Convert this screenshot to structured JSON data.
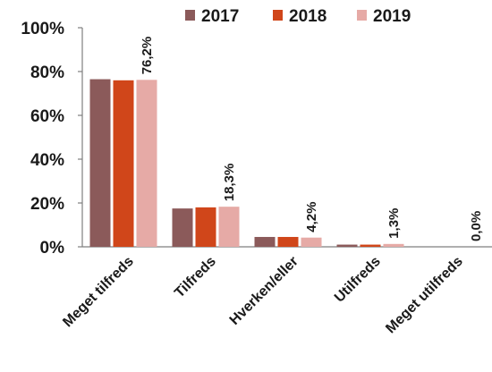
{
  "chart_data": {
    "type": "bar",
    "categories": [
      "Meget tilfreds",
      "Tilfreds",
      "Hverken/eller",
      "Utilfreds",
      "Meget utilfreds"
    ],
    "series": [
      {
        "name": "2017",
        "color": "#8b5a5a",
        "values": [
          76.5,
          17.5,
          4.5,
          1.0,
          0.0
        ]
      },
      {
        "name": "2018",
        "color": "#d0461a",
        "values": [
          76.0,
          18.0,
          4.5,
          1.0,
          0.0
        ]
      },
      {
        "name": "2019",
        "color": "#e6aaa6",
        "values": [
          76.2,
          18.3,
          4.2,
          1.3,
          0.0
        ],
        "labels": [
          "76,2%",
          "18,3%",
          "4,2%",
          "1,3%",
          "0,0%"
        ]
      }
    ],
    "y_ticks": [
      "0%",
      "20%",
      "40%",
      "60%",
      "80%",
      "100%"
    ],
    "ylim": [
      0,
      100
    ],
    "grid": false,
    "legend_position": "top"
  }
}
